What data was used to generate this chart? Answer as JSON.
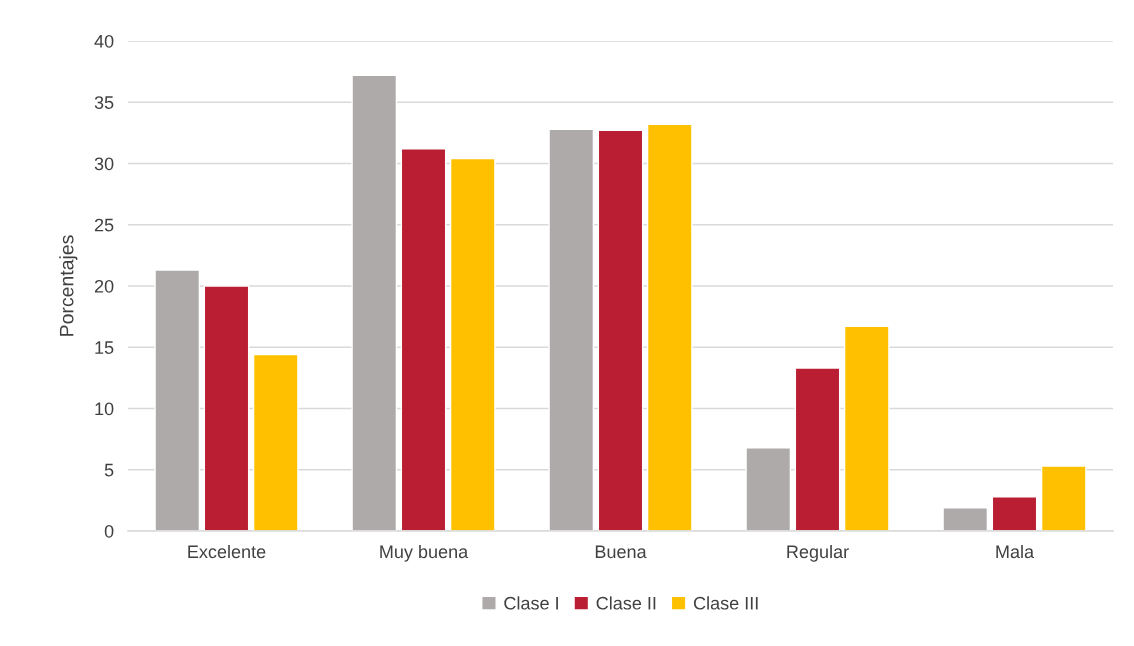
{
  "chart_data": {
    "type": "bar",
    "ylabel": "Porcentajes",
    "categories": [
      "Excelente",
      "Muy buena",
      "Buena",
      "Regular",
      "Mala"
    ],
    "series": [
      {
        "name": "Clase I",
        "color": "#aeaaaa",
        "values": [
          21.3,
          37.2,
          32.8,
          6.8,
          1.9
        ]
      },
      {
        "name": "Clase II",
        "color": "#ba1e32",
        "values": [
          20.0,
          31.2,
          32.7,
          13.3,
          2.8
        ]
      },
      {
        "name": "Clase III",
        "color": "#ffc000",
        "values": [
          14.4,
          30.4,
          33.2,
          16.7,
          5.3
        ]
      }
    ],
    "ylim": [
      0,
      40
    ],
    "yticks": [
      0,
      5,
      10,
      15,
      20,
      25,
      30,
      35,
      40
    ],
    "grid": "y",
    "legend": "bottom"
  }
}
